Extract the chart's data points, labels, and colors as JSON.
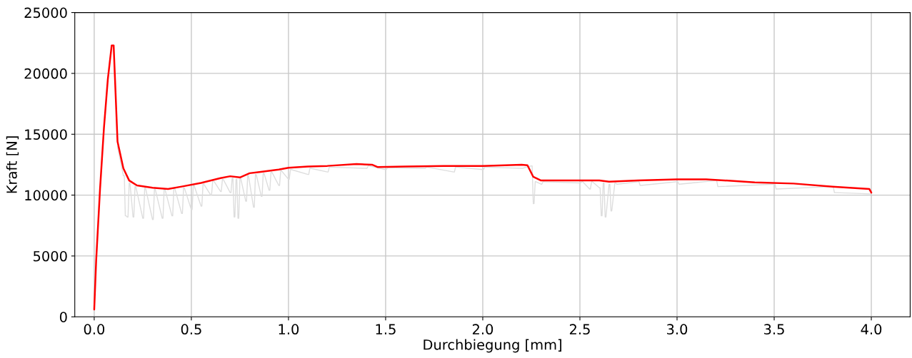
{
  "chart_data": {
    "type": "line",
    "xlabel": "Durchbiegung [mm]",
    "ylabel": "Kraft [N]",
    "xlim": [
      -0.1,
      4.2
    ],
    "ylim": [
      0,
      25000
    ],
    "xticks": [
      {
        "value": 0,
        "label": "0.0"
      },
      {
        "value": 0.5,
        "label": "0.5"
      },
      {
        "value": 1,
        "label": "1.0"
      },
      {
        "value": 1.5,
        "label": "1.5"
      },
      {
        "value": 2,
        "label": "2.0"
      },
      {
        "value": 2.5,
        "label": "2.5"
      },
      {
        "value": 3,
        "label": "3.0"
      },
      {
        "value": 3.5,
        "label": "3.5"
      },
      {
        "value": 4,
        "label": "4.0"
      }
    ],
    "yticks": [
      0,
      5000,
      10000,
      15000,
      20000,
      25000
    ],
    "grid": true,
    "marker": "none",
    "line_style": "solid",
    "series": [
      {
        "color": "#dddddd",
        "x": [
          0.12,
          0.15,
          0.155,
          0.16,
          0.164,
          0.17,
          0.174,
          0.18,
          0.184,
          0.2,
          0.204,
          0.21,
          0.214,
          0.25,
          0.254,
          0.26,
          0.264,
          0.3,
          0.304,
          0.31,
          0.314,
          0.35,
          0.354,
          0.36,
          0.364,
          0.4,
          0.404,
          0.41,
          0.414,
          0.45,
          0.454,
          0.46,
          0.464,
          0.5,
          0.504,
          0.51,
          0.514,
          0.55,
          0.554,
          0.56,
          0.564,
          0.6,
          0.604,
          0.61,
          0.614,
          0.65,
          0.654,
          0.66,
          0.664,
          0.7,
          0.704,
          0.71,
          0.714,
          0.72,
          0.724,
          0.73,
          0.734,
          0.74,
          0.744,
          0.75,
          0.754,
          0.78,
          0.784,
          0.79,
          0.794,
          0.82,
          0.824,
          0.83,
          0.834,
          0.86,
          0.864,
          0.87,
          0.874,
          0.9,
          0.904,
          0.91,
          0.914,
          0.95,
          0.954,
          0.96,
          0.964,
          1.0,
          1.004,
          1.01,
          1.014,
          1.1,
          1.104,
          1.11,
          1.114,
          1.2,
          1.204,
          1.21,
          1.214,
          1.4,
          1.404,
          1.41,
          1.414,
          1.5,
          1.504,
          1.51,
          1.514,
          1.7,
          1.704,
          1.71,
          1.714,
          1.85,
          1.854,
          1.86,
          1.864,
          2.0,
          2.004,
          2.01,
          2.014,
          2.2,
          2.204,
          2.25,
          2.254,
          2.26,
          2.264,
          2.27,
          2.274,
          2.3,
          2.304,
          2.31,
          2.314,
          2.5,
          2.504,
          2.51,
          2.514,
          2.55,
          2.554,
          2.56,
          2.564,
          2.6,
          2.604,
          2.61,
          2.614,
          2.62,
          2.624,
          2.63,
          2.634,
          2.65,
          2.654,
          2.66,
          2.664,
          2.68,
          2.684,
          2.69,
          2.694,
          2.8,
          2.804,
          2.81,
          2.814,
          3.0,
          3.004,
          3.01,
          3.014,
          3.2,
          3.204,
          3.21,
          3.214,
          3.5,
          3.504,
          3.51,
          3.514,
          3.8,
          3.804,
          3.81,
          3.814,
          4.0
        ],
        "values": [
          14000,
          11600,
          11600,
          8300,
          8300,
          8200,
          8200,
          11000,
          11000,
          8200,
          8200,
          10700,
          10700,
          8100,
          8100,
          10600,
          10600,
          8000,
          8000,
          10500,
          10500,
          8100,
          8100,
          10500,
          10500,
          8300,
          8300,
          10600,
          10600,
          8500,
          8500,
          10600,
          10600,
          8800,
          8800,
          10800,
          10800,
          9100,
          9100,
          10900,
          10900,
          10000,
          10000,
          11200,
          11200,
          10300,
          10300,
          11300,
          11300,
          10200,
          10200,
          11400,
          11400,
          8200,
          8200,
          11300,
          11300,
          8100,
          8100,
          11400,
          11400,
          9500,
          9500,
          11600,
          11600,
          9000,
          9000,
          11700,
          11700,
          9900,
          9900,
          11800,
          11800,
          10400,
          10400,
          11900,
          11900,
          10800,
          10800,
          12000,
          12000,
          11300,
          11300,
          12100,
          12100,
          11700,
          11700,
          12200,
          12200,
          11900,
          11900,
          12300,
          12300,
          12200,
          12200,
          12400,
          12400,
          12100,
          12100,
          12250,
          12250,
          12200,
          12200,
          12300,
          12300,
          11900,
          11900,
          12300,
          12300,
          12100,
          12100,
          12300,
          12300,
          12200,
          12200,
          12400,
          12400,
          9300,
          9300,
          11100,
          11100,
          10900,
          10900,
          11100,
          11100,
          11000,
          11000,
          11100,
          11100,
          10500,
          10500,
          11100,
          11100,
          10600,
          10600,
          8300,
          8300,
          11000,
          11000,
          8200,
          8200,
          10900,
          10900,
          8700,
          8700,
          11000,
          11000,
          10900,
          10900,
          11100,
          11100,
          10800,
          10800,
          11100,
          11100,
          10900,
          10900,
          11200,
          11200,
          10700,
          10700,
          10900,
          10900,
          10500,
          10500,
          10700,
          10700,
          10200,
          10200,
          10100
        ]
      },
      {
        "color": "#ff0000",
        "x": [
          0,
          0.01,
          0.03,
          0.05,
          0.07,
          0.09,
          0.1,
          0.12,
          0.15,
          0.18,
          0.22,
          0.3,
          0.38,
          0.45,
          0.55,
          0.65,
          0.7,
          0.75,
          0.8,
          0.85,
          0.95,
          1.0,
          1.1,
          1.2,
          1.35,
          1.43,
          1.46,
          1.6,
          1.8,
          2.0,
          2.2,
          2.23,
          2.26,
          2.3,
          2.5,
          2.6,
          2.65,
          2.8,
          3.0,
          3.15,
          3.4,
          3.6,
          3.8,
          3.99,
          4.0
        ],
        "values": [
          600,
          4600,
          10500,
          15500,
          19500,
          22300,
          22300,
          14400,
          12200,
          11200,
          10800,
          10600,
          10500,
          10700,
          11000,
          11400,
          11550,
          11450,
          11800,
          11900,
          12100,
          12250,
          12350,
          12400,
          12550,
          12500,
          12300,
          12350,
          12400,
          12400,
          12500,
          12450,
          11500,
          11200,
          11200,
          11200,
          11100,
          11200,
          11300,
          11300,
          11050,
          10950,
          10700,
          10500,
          10200
        ]
      }
    ]
  }
}
